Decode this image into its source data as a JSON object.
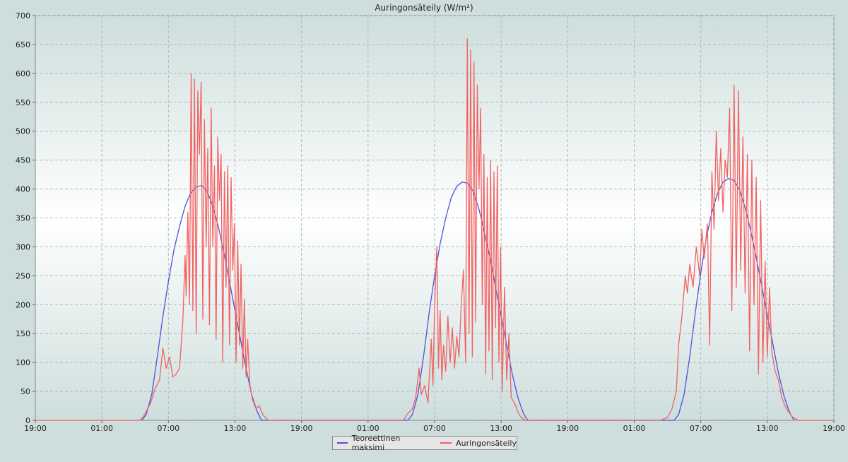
{
  "chart_data": {
    "type": "line",
    "title": "Auringonsäteily (W/m²)",
    "xlabel": "",
    "ylabel": "",
    "ylim": [
      0,
      700
    ],
    "yticks": [
      0,
      50,
      100,
      150,
      200,
      250,
      300,
      350,
      400,
      450,
      500,
      550,
      600,
      650,
      700
    ],
    "xlim_hours": [
      0,
      72
    ],
    "xticks": [
      {
        "h": 0,
        "label": "19:00"
      },
      {
        "h": 6,
        "label": "01:00"
      },
      {
        "h": 12,
        "label": "07:00"
      },
      {
        "h": 18,
        "label": "13:00"
      },
      {
        "h": 24,
        "label": "19:00"
      },
      {
        "h": 30,
        "label": "01:00"
      },
      {
        "h": 36,
        "label": "07:00"
      },
      {
        "h": 42,
        "label": "13:00"
      },
      {
        "h": 48,
        "label": "19:00"
      },
      {
        "h": 54,
        "label": "01:00"
      },
      {
        "h": 60,
        "label": "07:00"
      },
      {
        "h": 66,
        "label": "13:00"
      },
      {
        "h": 72,
        "label": "19:00"
      }
    ],
    "grid": true,
    "legend_position": "bottom-center",
    "series": [
      {
        "name": "Teoreettinen maksimi",
        "color": "#5050e0",
        "points": [
          [
            9.6,
            0
          ],
          [
            10.0,
            10
          ],
          [
            10.5,
            45
          ],
          [
            11.0,
            110
          ],
          [
            11.5,
            180
          ],
          [
            12.0,
            240
          ],
          [
            12.5,
            295
          ],
          [
            13.0,
            335
          ],
          [
            13.5,
            370
          ],
          [
            14.0,
            393
          ],
          [
            14.5,
            404
          ],
          [
            15.0,
            406
          ],
          [
            15.5,
            396
          ],
          [
            16.0,
            370
          ],
          [
            16.5,
            335
          ],
          [
            17.0,
            290
          ],
          [
            17.5,
            240
          ],
          [
            18.0,
            190
          ],
          [
            18.5,
            140
          ],
          [
            19.0,
            90
          ],
          [
            19.5,
            45
          ],
          [
            20.0,
            15
          ],
          [
            20.4,
            0
          ],
          [
            33.6,
            0
          ],
          [
            34.0,
            10
          ],
          [
            34.5,
            45
          ],
          [
            35.0,
            110
          ],
          [
            35.5,
            185
          ],
          [
            36.0,
            250
          ],
          [
            36.5,
            305
          ],
          [
            37.0,
            350
          ],
          [
            37.5,
            385
          ],
          [
            38.0,
            405
          ],
          [
            38.5,
            412
          ],
          [
            39.0,
            410
          ],
          [
            39.5,
            395
          ],
          [
            40.0,
            365
          ],
          [
            40.5,
            325
          ],
          [
            41.0,
            280
          ],
          [
            41.5,
            230
          ],
          [
            42.0,
            180
          ],
          [
            42.5,
            130
          ],
          [
            43.0,
            80
          ],
          [
            43.5,
            40
          ],
          [
            44.0,
            12
          ],
          [
            44.4,
            0
          ],
          [
            57.6,
            0
          ],
          [
            58.0,
            10
          ],
          [
            58.5,
            45
          ],
          [
            59.0,
            110
          ],
          [
            59.5,
            185
          ],
          [
            60.0,
            255
          ],
          [
            60.5,
            315
          ],
          [
            61.0,
            360
          ],
          [
            61.5,
            392
          ],
          [
            62.0,
            412
          ],
          [
            62.5,
            418
          ],
          [
            63.0,
            415
          ],
          [
            63.5,
            398
          ],
          [
            64.0,
            368
          ],
          [
            64.5,
            328
          ],
          [
            65.0,
            282
          ],
          [
            65.5,
            232
          ],
          [
            66.0,
            182
          ],
          [
            66.5,
            132
          ],
          [
            67.0,
            82
          ],
          [
            67.5,
            42
          ],
          [
            68.0,
            14
          ],
          [
            68.4,
            0
          ]
        ]
      },
      {
        "name": "Auringonsäteily",
        "color": "#f06262",
        "points": [
          [
            0,
            0
          ],
          [
            9.4,
            0
          ],
          [
            9.7,
            5
          ],
          [
            10.0,
            15
          ],
          [
            10.4,
            30
          ],
          [
            10.8,
            55
          ],
          [
            11.2,
            70
          ],
          [
            11.5,
            125
          ],
          [
            11.8,
            90
          ],
          [
            12.1,
            110
          ],
          [
            12.4,
            75
          ],
          [
            12.7,
            80
          ],
          [
            13.0,
            90
          ],
          [
            13.3,
            170
          ],
          [
            13.5,
            285
          ],
          [
            13.6,
            215
          ],
          [
            13.75,
            360
          ],
          [
            13.9,
            200
          ],
          [
            14.05,
            600
          ],
          [
            14.2,
            190
          ],
          [
            14.35,
            590
          ],
          [
            14.5,
            150
          ],
          [
            14.65,
            570
          ],
          [
            14.8,
            460
          ],
          [
            14.95,
            585
          ],
          [
            15.1,
            175
          ],
          [
            15.25,
            520
          ],
          [
            15.4,
            300
          ],
          [
            15.55,
            470
          ],
          [
            15.7,
            165
          ],
          [
            15.85,
            540
          ],
          [
            16.0,
            300
          ],
          [
            16.15,
            440
          ],
          [
            16.3,
            140
          ],
          [
            16.45,
            490
          ],
          [
            16.6,
            380
          ],
          [
            16.75,
            460
          ],
          [
            16.9,
            100
          ],
          [
            17.05,
            430
          ],
          [
            17.2,
            230
          ],
          [
            17.35,
            440
          ],
          [
            17.5,
            130
          ],
          [
            17.65,
            420
          ],
          [
            17.8,
            260
          ],
          [
            17.95,
            340
          ],
          [
            18.1,
            100
          ],
          [
            18.25,
            310
          ],
          [
            18.4,
            130
          ],
          [
            18.55,
            270
          ],
          [
            18.7,
            90
          ],
          [
            18.85,
            210
          ],
          [
            19.0,
            75
          ],
          [
            19.15,
            140
          ],
          [
            19.35,
            60
          ],
          [
            19.6,
            35
          ],
          [
            19.9,
            20
          ],
          [
            20.2,
            25
          ],
          [
            20.5,
            10
          ],
          [
            21.0,
            0
          ],
          [
            33.2,
            0
          ],
          [
            33.5,
            10
          ],
          [
            34.0,
            20
          ],
          [
            34.3,
            40
          ],
          [
            34.6,
            90
          ],
          [
            34.8,
            45
          ],
          [
            35.1,
            60
          ],
          [
            35.4,
            30
          ],
          [
            35.7,
            140
          ],
          [
            35.85,
            60
          ],
          [
            36.0,
            195
          ],
          [
            36.2,
            300
          ],
          [
            36.35,
            90
          ],
          [
            36.5,
            190
          ],
          [
            36.65,
            70
          ],
          [
            36.8,
            130
          ],
          [
            37.0,
            85
          ],
          [
            37.2,
            180
          ],
          [
            37.4,
            100
          ],
          [
            37.6,
            160
          ],
          [
            37.8,
            90
          ],
          [
            38.0,
            145
          ],
          [
            38.2,
            110
          ],
          [
            38.4,
            200
          ],
          [
            38.6,
            260
          ],
          [
            38.8,
            100
          ],
          [
            38.95,
            660
          ],
          [
            39.1,
            150
          ],
          [
            39.25,
            640
          ],
          [
            39.4,
            110
          ],
          [
            39.55,
            620
          ],
          [
            39.7,
            170
          ],
          [
            39.85,
            580
          ],
          [
            40.0,
            400
          ],
          [
            40.15,
            540
          ],
          [
            40.3,
            200
          ],
          [
            40.45,
            460
          ],
          [
            40.6,
            80
          ],
          [
            40.75,
            420
          ],
          [
            40.9,
            120
          ],
          [
            41.05,
            450
          ],
          [
            41.2,
            70
          ],
          [
            41.35,
            430
          ],
          [
            41.5,
            160
          ],
          [
            41.65,
            440
          ],
          [
            41.8,
            100
          ],
          [
            41.95,
            300
          ],
          [
            42.1,
            50
          ],
          [
            42.3,
            230
          ],
          [
            42.5,
            70
          ],
          [
            42.7,
            150
          ],
          [
            42.9,
            40
          ],
          [
            43.2,
            30
          ],
          [
            43.5,
            15
          ],
          [
            43.8,
            5
          ],
          [
            44.2,
            0
          ],
          [
            56.4,
            0
          ],
          [
            57.0,
            5
          ],
          [
            57.4,
            20
          ],
          [
            57.8,
            50
          ],
          [
            58.0,
            130
          ],
          [
            58.3,
            180
          ],
          [
            58.6,
            250
          ],
          [
            58.8,
            220
          ],
          [
            59.0,
            270
          ],
          [
            59.3,
            230
          ],
          [
            59.6,
            300
          ],
          [
            59.9,
            250
          ],
          [
            60.1,
            330
          ],
          [
            60.3,
            280
          ],
          [
            60.6,
            340
          ],
          [
            60.8,
            130
          ],
          [
            61.0,
            430
          ],
          [
            61.2,
            330
          ],
          [
            61.4,
            500
          ],
          [
            61.6,
            380
          ],
          [
            61.8,
            470
          ],
          [
            62.0,
            360
          ],
          [
            62.2,
            450
          ],
          [
            62.4,
            420
          ],
          [
            62.6,
            540
          ],
          [
            62.8,
            190
          ],
          [
            63.0,
            580
          ],
          [
            63.2,
            230
          ],
          [
            63.4,
            570
          ],
          [
            63.6,
            260
          ],
          [
            63.8,
            490
          ],
          [
            64.0,
            220
          ],
          [
            64.2,
            460
          ],
          [
            64.4,
            120
          ],
          [
            64.6,
            450
          ],
          [
            64.8,
            200
          ],
          [
            65.0,
            420
          ],
          [
            65.2,
            80
          ],
          [
            65.4,
            380
          ],
          [
            65.6,
            100
          ],
          [
            65.8,
            275
          ],
          [
            66.0,
            110
          ],
          [
            66.2,
            230
          ],
          [
            66.4,
            120
          ],
          [
            66.7,
            85
          ],
          [
            67.0,
            70
          ],
          [
            67.3,
            40
          ],
          [
            67.6,
            25
          ],
          [
            67.9,
            15
          ],
          [
            68.3,
            5
          ],
          [
            68.8,
            0
          ],
          [
            72,
            0
          ]
        ]
      }
    ]
  }
}
